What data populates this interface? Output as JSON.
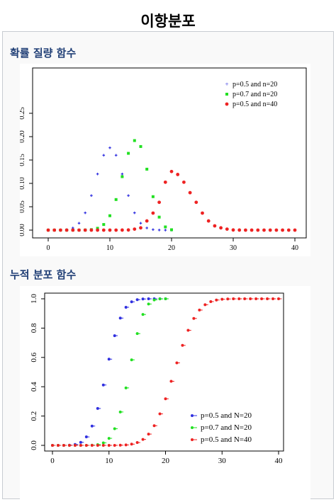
{
  "page": {
    "title": "이항분포"
  },
  "pmf_section": {
    "title": "확률 질량 함수"
  },
  "cdf_section": {
    "title": "누적 분포 함수"
  },
  "chart_data": [
    {
      "type": "scatter",
      "title": "",
      "xlabel": "",
      "ylabel": "",
      "xlim": [
        0,
        40
      ],
      "ylim": [
        0,
        0.25
      ],
      "xticks": [
        "0",
        "10",
        "20",
        "30",
        "40"
      ],
      "yticks": [
        "0.00",
        "0.05",
        "0.10",
        "0.15",
        "0.20",
        "0.25"
      ],
      "legend_position": "top-right",
      "series": [
        {
          "name": "p=0.5 and n=20",
          "color": "#3030e0",
          "marker": "plus",
          "x": [
            0,
            1,
            2,
            3,
            4,
            5,
            6,
            7,
            8,
            9,
            10,
            11,
            12,
            13,
            14,
            15,
            16,
            17,
            18,
            19,
            20
          ],
          "y": [
            0,
            0,
            0.0002,
            0.0011,
            0.0046,
            0.0148,
            0.037,
            0.0739,
            0.1201,
            0.1602,
            0.1762,
            0.1602,
            0.1201,
            0.0739,
            0.037,
            0.0148,
            0.0046,
            0.0011,
            0.0002,
            0,
            0
          ]
        },
        {
          "name": "p=0.7 and n=20",
          "color": "#22e022",
          "marker": "square",
          "x": [
            0,
            1,
            2,
            3,
            4,
            5,
            6,
            7,
            8,
            9,
            10,
            11,
            12,
            13,
            14,
            15,
            16,
            17,
            18,
            19,
            20
          ],
          "y": [
            0,
            0,
            0,
            0,
            0,
            0,
            0.0002,
            0.001,
            0.0039,
            0.012,
            0.0308,
            0.0654,
            0.1144,
            0.1643,
            0.1916,
            0.1789,
            0.1304,
            0.0716,
            0.0278,
            0.0068,
            0.0008
          ]
        },
        {
          "name": "p=0.5 and n=40",
          "color": "#ee2222",
          "marker": "circle",
          "x": [
            0,
            1,
            2,
            3,
            4,
            5,
            6,
            7,
            8,
            9,
            10,
            11,
            12,
            13,
            14,
            15,
            16,
            17,
            18,
            19,
            20,
            21,
            22,
            23,
            24,
            25,
            26,
            27,
            28,
            29,
            30,
            31,
            32,
            33,
            34,
            35,
            36,
            37,
            38,
            39,
            40
          ],
          "y": [
            0,
            0,
            0,
            0,
            0,
            0,
            0,
            0,
            0,
            0,
            0,
            0,
            0.0001,
            0.0003,
            0.0021,
            0.0048,
            0.0196,
            0.0364,
            0.0595,
            0.1025,
            0.1254,
            0.119,
            0.1025,
            0.0801,
            0.0595,
            0.0364,
            0.0196,
            0.0091,
            0.0048,
            0.0021,
            0.0003,
            0.0001,
            0,
            0,
            0,
            0,
            0,
            0,
            0,
            0,
            0
          ]
        }
      ]
    },
    {
      "type": "scatter",
      "title": "",
      "xlabel": "",
      "ylabel": "",
      "xlim": [
        0,
        40
      ],
      "ylim": [
        0,
        1
      ],
      "xticks": [
        "0",
        "10",
        "20",
        "30",
        "40"
      ],
      "yticks": [
        "0.0",
        "0.2",
        "0.4",
        "0.6",
        "0.8",
        "1.0"
      ],
      "legend_position": "bottom-right",
      "series": [
        {
          "name": "p=0.5 and N=20",
          "color": "#3030e0",
          "marker": "step",
          "x": [
            0,
            1,
            2,
            3,
            4,
            5,
            6,
            7,
            8,
            9,
            10,
            11,
            12,
            13,
            14,
            15,
            16,
            17,
            18,
            19,
            20
          ],
          "y": [
            0,
            0,
            0.0002,
            0.0013,
            0.0059,
            0.0207,
            0.0577,
            0.1316,
            0.2517,
            0.4119,
            0.5881,
            0.7483,
            0.8684,
            0.9423,
            0.9793,
            0.9941,
            0.9987,
            0.9998,
            1,
            1,
            1
          ]
        },
        {
          "name": "p=0.7 and N=20",
          "color": "#22e022",
          "marker": "step",
          "x": [
            0,
            1,
            2,
            3,
            4,
            5,
            6,
            7,
            8,
            9,
            10,
            11,
            12,
            13,
            14,
            15,
            16,
            17,
            18,
            19,
            20
          ],
          "y": [
            0,
            0,
            0,
            0,
            0,
            0,
            0.0003,
            0.0013,
            0.0051,
            0.0171,
            0.048,
            0.1133,
            0.2277,
            0.392,
            0.5836,
            0.7625,
            0.8929,
            0.9645,
            0.9924,
            0.9992,
            1
          ]
        },
        {
          "name": "p=0.5 and N=40",
          "color": "#ee2222",
          "marker": "step",
          "x": [
            0,
            1,
            2,
            3,
            4,
            5,
            6,
            7,
            8,
            9,
            10,
            11,
            12,
            13,
            14,
            15,
            16,
            17,
            18,
            19,
            20,
            21,
            22,
            23,
            24,
            25,
            26,
            27,
            28,
            29,
            30,
            31,
            32,
            33,
            34,
            35,
            36,
            37,
            38,
            39,
            40
          ],
          "y": [
            0,
            0,
            0,
            0,
            0,
            0,
            0,
            0,
            0,
            0,
            0,
            0.0003,
            0.0011,
            0.0032,
            0.0083,
            0.0192,
            0.0403,
            0.0769,
            0.1341,
            0.2148,
            0.3179,
            0.4373,
            0.5627,
            0.6821,
            0.7852,
            0.8659,
            0.9231,
            0.9597,
            0.9808,
            0.9917,
            0.9968,
            0.9989,
            0.9997,
            0.9999,
            1,
            1,
            1,
            1,
            1,
            1,
            1
          ]
        }
      ]
    }
  ]
}
